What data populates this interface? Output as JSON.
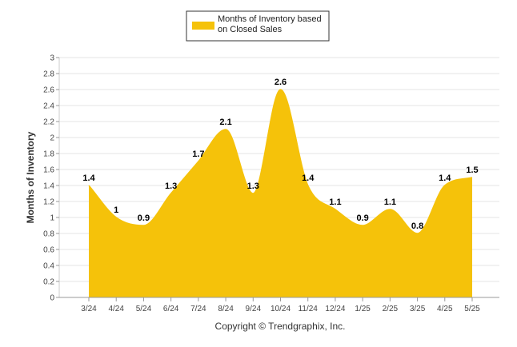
{
  "chart_data": {
    "type": "area",
    "categories": [
      "3/24",
      "4/24",
      "5/24",
      "6/24",
      "7/24",
      "8/24",
      "9/24",
      "10/24",
      "11/24",
      "12/24",
      "1/25",
      "2/25",
      "3/25",
      "4/25",
      "5/25"
    ],
    "series": [
      {
        "name": "Months of Inventory based on Closed Sales",
        "values": [
          1.4,
          1,
          0.9,
          1.3,
          1.7,
          2.1,
          1.3,
          2.6,
          1.4,
          1.1,
          0.9,
          1.1,
          0.8,
          1.4,
          1.5
        ],
        "labels": [
          "1.4",
          "1",
          "0.9",
          "1.3",
          "1.7",
          "2.1",
          "1.3",
          "2.6",
          "1.4",
          "1.1",
          "0.9",
          "1.1",
          "0.8",
          "1.4",
          "1.5"
        ]
      }
    ],
    "legend_lines": [
      "Months of Inventory based",
      "on Closed Sales"
    ],
    "ylabel": "Months of Inventory",
    "ylim": [
      0,
      3
    ],
    "yticks": [
      "0",
      "0.2",
      "0.4",
      "0.6",
      "0.8",
      "1",
      "1.2",
      "1.4",
      "1.6",
      "1.8",
      "2",
      "2.2",
      "2.4",
      "2.6",
      "2.8",
      "3"
    ],
    "grid": true,
    "legend_position": "top-center",
    "color": "#F5C20A",
    "footer": "Copyright © Trendgraphix, Inc."
  }
}
